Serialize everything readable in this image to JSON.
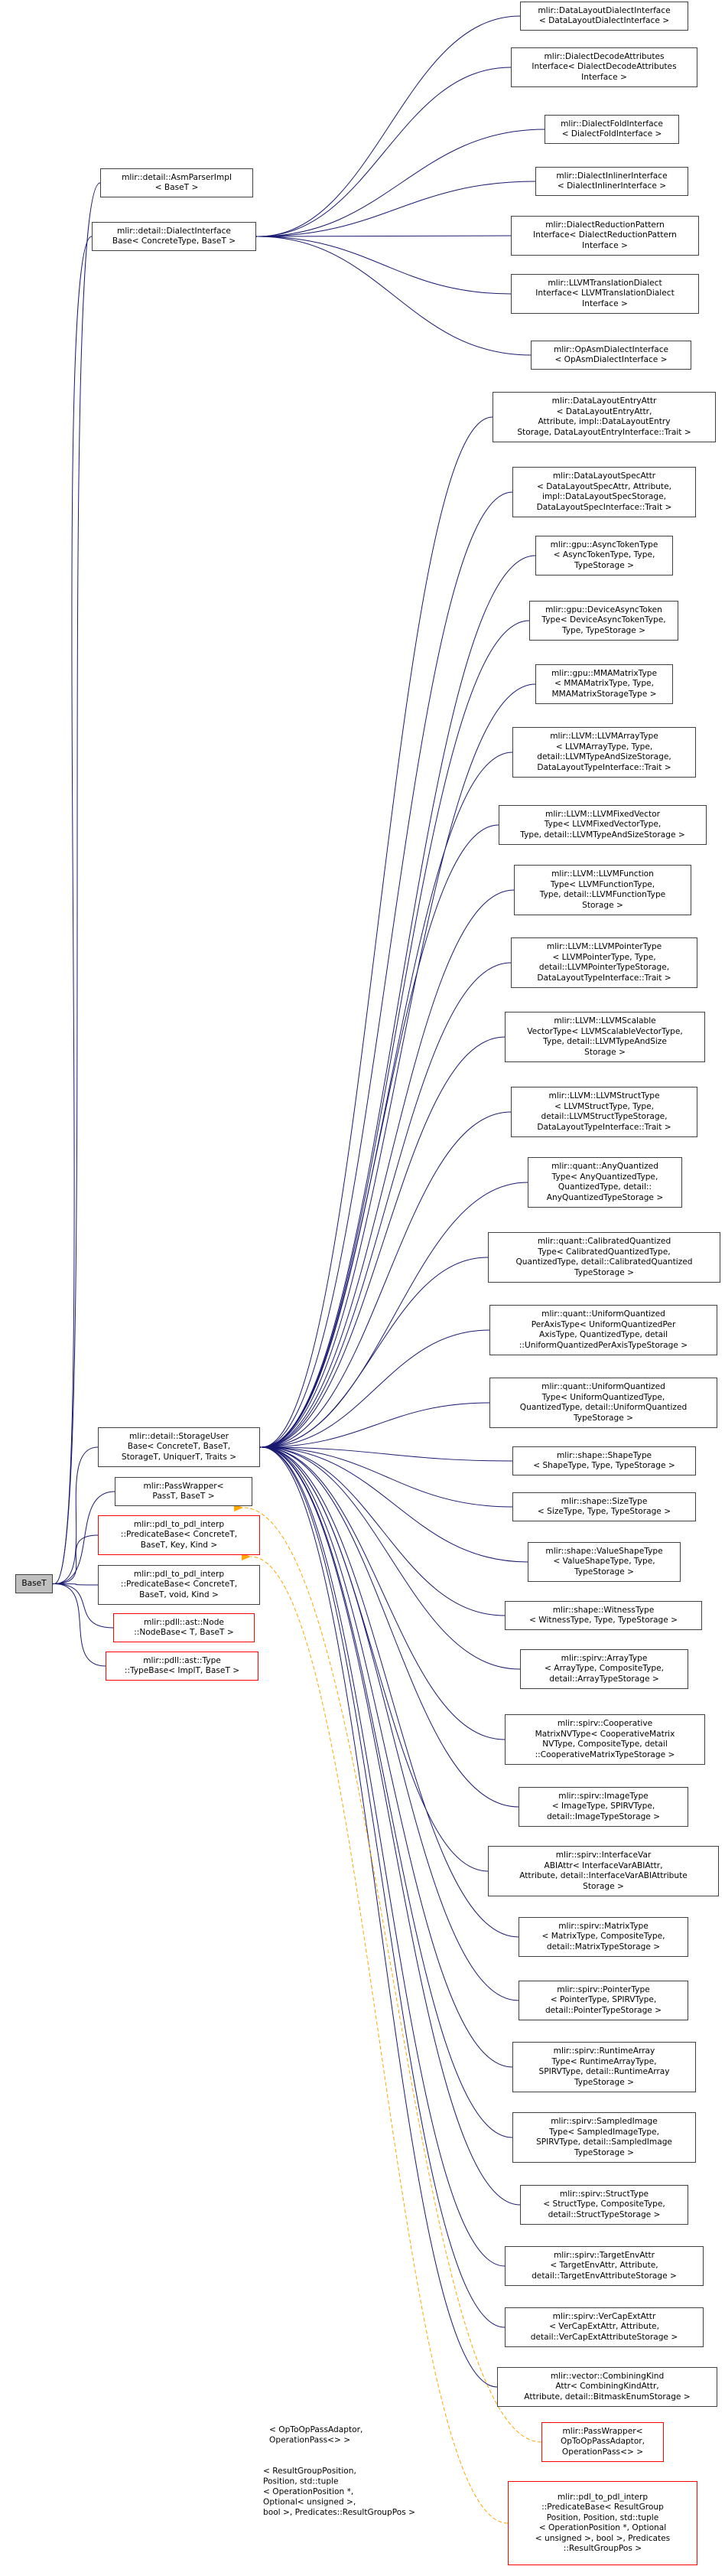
{
  "nodes": [
    {
      "id": "baset",
      "lines": [
        "BaseT"
      ],
      "style": "gray",
      "interactable": false
    },
    {
      "id": "asmparserimpl",
      "lines": [
        "mlir::detail::AsmParserImpl",
        "< BaseT >"
      ]
    },
    {
      "id": "dialectinterfacebase",
      "lines": [
        "mlir::detail::DialectInterface",
        "Base< ConcreteType, BaseT >"
      ]
    },
    {
      "id": "storageuserbase",
      "lines": [
        "mlir::detail::StorageUser",
        "Base< ConcreteT, BaseT,",
        "StorageT, UniquerT, Traits >"
      ]
    },
    {
      "id": "passwrapper",
      "lines": [
        "mlir::PassWrapper<",
        "PassT, BaseT >"
      ]
    },
    {
      "id": "predicatebase-key",
      "lines": [
        "mlir::pdl_to_pdl_interp",
        "::PredicateBase< ConcreteT,",
        "BaseT, Key, Kind >"
      ],
      "style": "red"
    },
    {
      "id": "predicatebase-void",
      "lines": [
        "mlir::pdl_to_pdl_interp",
        "::PredicateBase< ConcreteT,",
        "BaseT, void, Kind >"
      ]
    },
    {
      "id": "nodebase",
      "lines": [
        "mlir::pdll::ast::Node",
        "::NodeBase< T, BaseT >"
      ],
      "style": "red"
    },
    {
      "id": "typebase",
      "lines": [
        "mlir::pdll::ast::Type",
        "::TypeBase< ImplT, BaseT >"
      ],
      "style": "red"
    },
    {
      "id": "datalayoutdialectinterface",
      "lines": [
        "mlir::DataLayoutDialectInterface",
        "< DataLayoutDialectInterface >"
      ]
    },
    {
      "id": "dialectdecodeattributes",
      "lines": [
        "mlir::DialectDecodeAttributes",
        "Interface< DialectDecodeAttributes",
        "Interface >"
      ]
    },
    {
      "id": "dialectfoldinterface",
      "lines": [
        "mlir::DialectFoldInterface",
        "< DialectFoldInterface >"
      ]
    },
    {
      "id": "dialectinlinerinterface",
      "lines": [
        "mlir::DialectInlinerInterface",
        "< DialectInlinerInterface >"
      ]
    },
    {
      "id": "dialectreductionpattern",
      "lines": [
        "mlir::DialectReductionPattern",
        "Interface< DialectReductionPattern",
        "Interface >"
      ]
    },
    {
      "id": "llvmtranslationdialect",
      "lines": [
        "mlir::LLVMTranslationDialect",
        "Interface< LLVMTranslationDialect",
        "Interface >"
      ]
    },
    {
      "id": "opasmdialectinterface",
      "lines": [
        "mlir::OpAsmDialectInterface",
        "< OpAsmDialectInterface >"
      ]
    },
    {
      "id": "datalayoutentryattr",
      "lines": [
        "mlir::DataLayoutEntryAttr",
        "< DataLayoutEntryAttr,",
        "Attribute, impl::DataLayoutEntry",
        "Storage, DataLayoutEntryInterface::Trait >"
      ]
    },
    {
      "id": "datalayoutspecattr",
      "lines": [
        "mlir::DataLayoutSpecAttr",
        "< DataLayoutSpecAttr, Attribute,",
        "impl::DataLayoutSpecStorage,",
        "DataLayoutSpecInterface::Trait >"
      ]
    },
    {
      "id": "gpu-asynctokentype",
      "lines": [
        "mlir::gpu::AsyncTokenType",
        "< AsyncTokenType, Type,",
        "TypeStorage >"
      ]
    },
    {
      "id": "gpu-deviceasynctoken",
      "lines": [
        "mlir::gpu::DeviceAsyncToken",
        "Type< DeviceAsyncTokenType,",
        "Type, TypeStorage >"
      ]
    },
    {
      "id": "gpu-mmamatrixtype",
      "lines": [
        "mlir::gpu::MMAMatrixType",
        "< MMAMatrixType, Type,",
        "MMAMatrixStorageType >"
      ]
    },
    {
      "id": "llvm-arraytype",
      "lines": [
        "mlir::LLVM::LLVMArrayType",
        "< LLVMArrayType, Type,",
        "detail::LLVMTypeAndSizeStorage,",
        "DataLayoutTypeInterface::Trait >"
      ]
    },
    {
      "id": "llvm-fixedvector",
      "lines": [
        "mlir::LLVM::LLVMFixedVector",
        "Type< LLVMFixedVectorType,",
        "Type, detail::LLVMTypeAndSizeStorage >"
      ]
    },
    {
      "id": "llvm-function",
      "lines": [
        "mlir::LLVM::LLVMFunction",
        "Type< LLVMFunctionType,",
        "Type, detail::LLVMFunctionType",
        "Storage >"
      ]
    },
    {
      "id": "llvm-pointertype",
      "lines": [
        "mlir::LLVM::LLVMPointerType",
        "< LLVMPointerType, Type,",
        "detail::LLVMPointerTypeStorage,",
        "DataLayoutTypeInterface::Trait >"
      ]
    },
    {
      "id": "llvm-scalablevector",
      "lines": [
        "mlir::LLVM::LLVMScalable",
        "VectorType< LLVMScalableVectorType,",
        "Type, detail::LLVMTypeAndSize",
        "Storage >"
      ]
    },
    {
      "id": "llvm-structtype",
      "lines": [
        "mlir::LLVM::LLVMStructType",
        "< LLVMStructType, Type,",
        "detail::LLVMStructTypeStorage,",
        "DataLayoutTypeInterface::Trait >"
      ]
    },
    {
      "id": "quant-anyquantized",
      "lines": [
        "mlir::quant::AnyQuantized",
        "Type< AnyQuantizedType,",
        "QuantizedType, detail::",
        "AnyQuantizedTypeStorage >"
      ]
    },
    {
      "id": "quant-calibratedquantized",
      "lines": [
        "mlir::quant::CalibratedQuantized",
        "Type< CalibratedQuantizedType,",
        "QuantizedType, detail::CalibratedQuantized",
        "TypeStorage >"
      ]
    },
    {
      "id": "quant-uniformperaxis",
      "lines": [
        "mlir::quant::UniformQuantized",
        "PerAxisType< UniformQuantizedPer",
        "AxisType, QuantizedType, detail",
        "::UniformQuantizedPerAxisTypeStorage >"
      ]
    },
    {
      "id": "quant-uniformquantized",
      "lines": [
        "mlir::quant::UniformQuantized",
        "Type< UniformQuantizedType,",
        "QuantizedType, detail::UniformQuantized",
        "TypeStorage >"
      ]
    },
    {
      "id": "shape-shapetype",
      "lines": [
        "mlir::shape::ShapeType",
        "< ShapeType, Type, TypeStorage >"
      ]
    },
    {
      "id": "shape-sizetype",
      "lines": [
        "mlir::shape::SizeType",
        "< SizeType, Type, TypeStorage >"
      ]
    },
    {
      "id": "shape-valueshapetype",
      "lines": [
        "mlir::shape::ValueShapeType",
        "< ValueShapeType, Type,",
        "TypeStorage >"
      ]
    },
    {
      "id": "shape-witnesstype",
      "lines": [
        "mlir::shape::WitnessType",
        "< WitnessType, Type, TypeStorage >"
      ]
    },
    {
      "id": "spirv-arraytype",
      "lines": [
        "mlir::spirv::ArrayType",
        "< ArrayType, CompositeType,",
        "detail::ArrayTypeStorage >"
      ]
    },
    {
      "id": "spirv-cooperativematrix",
      "lines": [
        "mlir::spirv::Cooperative",
        "MatrixNVType< CooperativeMatrix",
        "NVType, CompositeType, detail",
        "::CooperativeMatrixTypeStorage >"
      ]
    },
    {
      "id": "spirv-imagetype",
      "lines": [
        "mlir::spirv::ImageType",
        "< ImageType, SPIRVType,",
        "detail::ImageTypeStorage >"
      ]
    },
    {
      "id": "spirv-interfacevar",
      "lines": [
        "mlir::spirv::InterfaceVar",
        "ABIAttr< InterfaceVarABIAttr,",
        "Attribute, detail::InterfaceVarABIAttribute",
        "Storage >"
      ]
    },
    {
      "id": "spirv-matrixtype",
      "lines": [
        "mlir::spirv::MatrixType",
        "< MatrixType, CompositeType,",
        "detail::MatrixTypeStorage >"
      ]
    },
    {
      "id": "spirv-pointertype",
      "lines": [
        "mlir::spirv::PointerType",
        "< PointerType, SPIRVType,",
        "detail::PointerTypeStorage >"
      ]
    },
    {
      "id": "spirv-runtimearray",
      "lines": [
        "mlir::spirv::RuntimeArray",
        "Type< RuntimeArrayType,",
        "SPIRVType, detail::RuntimeArray",
        "TypeStorage >"
      ]
    },
    {
      "id": "spirv-sampledimage",
      "lines": [
        "mlir::spirv::SampledImage",
        "Type< SampledImageType,",
        "SPIRVType, detail::SampledImage",
        "TypeStorage >"
      ]
    },
    {
      "id": "spirv-structtype",
      "lines": [
        "mlir::spirv::StructType",
        "< StructType, CompositeType,",
        "detail::StructTypeStorage >"
      ]
    },
    {
      "id": "spirv-targetenvattr",
      "lines": [
        "mlir::spirv::TargetEnvAttr",
        "< TargetEnvAttr, Attribute,",
        "detail::TargetEnvAttributeStorage >"
      ]
    },
    {
      "id": "spirv-vercapextattr",
      "lines": [
        "mlir::spirv::VerCapExtAttr",
        "< VerCapExtAttr, Attribute,",
        "detail::VerCapExtAttributeStorage >"
      ]
    },
    {
      "id": "vector-combiningkind",
      "lines": [
        "mlir::vector::CombiningKind",
        "Attr< CombiningKindAttr,",
        "Attribute, detail::BitmaskEnumStorage >"
      ]
    },
    {
      "id": "passwrapper-optoop",
      "lines": [
        "mlir::PassWrapper<",
        "OpToOpPassAdaptor,",
        "OperationPass<> >"
      ],
      "style": "red"
    },
    {
      "id": "predicatebase-resultgroup",
      "lines": [
        "mlir::pdl_to_pdl_interp",
        "::PredicateBase< ResultGroup",
        "Position, Position, std::tuple",
        "< OperationPosition *, Optional",
        "< unsigned >, bool >, Predicates",
        "::ResultGroupPos >"
      ],
      "style": "red"
    }
  ],
  "edge_labels": {
    "optoop": [
      "< OpToOpPassAdaptor,",
      "OperationPass<> >"
    ],
    "resultgroup": [
      "< ResultGroupPosition,",
      "Position, std::tuple",
      "< OperationPosition *,",
      "Optional< unsigned >,",
      "bool >, Predicates::ResultGroupPos >"
    ]
  },
  "colors": {
    "edge": "#191970",
    "template_edge": "#ffa500",
    "node_border": "#404040",
    "red_border": "#ff0000",
    "base_fill": "#bfbfbf"
  }
}
